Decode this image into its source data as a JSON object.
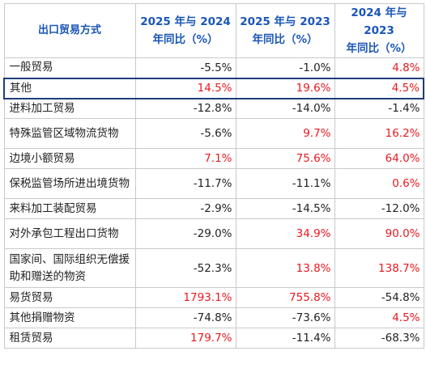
{
  "table": {
    "header": {
      "mode": "出口贸易方式",
      "columns": [
        {
          "line1": "2025 年与 2024",
          "line2": "年同比（%）"
        },
        {
          "line1": "2025 年与 2023",
          "line2": "年同比（%）"
        },
        {
          "line1": "2024 年与 2023",
          "line2": "年同比（%）"
        }
      ]
    },
    "colors": {
      "header_text": "#1a56b8",
      "positive": "#e8191e",
      "negative": "#222222",
      "highlight_border": "#1f3d7a"
    },
    "rows": [
      {
        "mode": "一般贸易",
        "v2025_2024": "-5.5%",
        "v2025_2023": "-1.0%",
        "v2024_2023": "4.8%"
      },
      {
        "mode": "其他",
        "v2025_2024": "14.5%",
        "v2025_2023": "19.6%",
        "v2024_2023": "4.5%",
        "highlighted": true
      },
      {
        "mode": "进料加工贸易",
        "v2025_2024": "-12.8%",
        "v2025_2023": "-14.0%",
        "v2024_2023": "-1.4%"
      },
      {
        "mode": "特殊监管区域物流货物",
        "v2025_2024": "-5.6%",
        "v2025_2023": "9.7%",
        "v2024_2023": "16.2%"
      },
      {
        "mode": "边境小额贸易",
        "v2025_2024": "7.1%",
        "v2025_2023": "75.6%",
        "v2024_2023": "64.0%"
      },
      {
        "mode": "保税监管场所进出境货物",
        "v2025_2024": "-11.7%",
        "v2025_2023": "-11.1%",
        "v2024_2023": "0.6%"
      },
      {
        "mode": "来料加工装配贸易",
        "v2025_2024": "-2.9%",
        "v2025_2023": "-14.5%",
        "v2024_2023": "-12.0%"
      },
      {
        "mode": "对外承包工程出口货物",
        "v2025_2024": "-29.0%",
        "v2025_2023": "34.9%",
        "v2024_2023": "90.0%"
      },
      {
        "mode": "国家间、国际组织无偿援助和赠送的物资",
        "v2025_2024": "-52.3%",
        "v2025_2023": "13.8%",
        "v2024_2023": "138.7%"
      },
      {
        "mode": "易货贸易",
        "v2025_2024": "1793.1%",
        "v2025_2023": "755.8%",
        "v2024_2023": "-54.8%"
      },
      {
        "mode": "其他捐赠物资",
        "v2025_2024": "-74.8%",
        "v2025_2023": "-73.6%",
        "v2024_2023": "4.5%"
      },
      {
        "mode": "租赁贸易",
        "v2025_2024": "179.7%",
        "v2025_2023": "-11.4%",
        "v2024_2023": "-68.3%"
      }
    ]
  }
}
